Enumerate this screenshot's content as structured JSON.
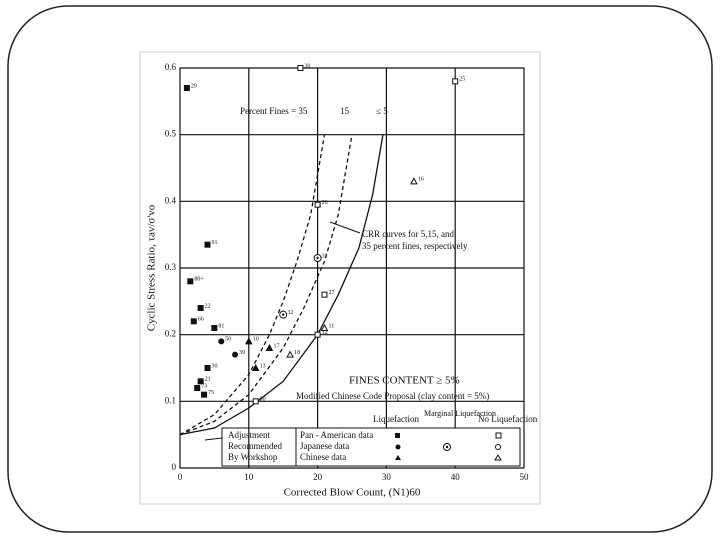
{
  "chart_data": {
    "type": "scatter",
    "x_label": "Corrected Blow Count, (N1)60",
    "y_label": "Cyclic Stress Ratio, τav/σ'vo",
    "xlim": [
      0,
      50
    ],
    "ylim": [
      0,
      0.6
    ],
    "xticks": [
      0,
      10,
      20,
      30,
      40,
      50
    ],
    "yticks": [
      0,
      0.1,
      0.2,
      0.3,
      0.4,
      0.5,
      0.6
    ],
    "grid": true,
    "color": "#111111",
    "annotations": [
      "Percent Fines = 35",
      "15",
      "≤ 5",
      "CRR curves for 5,15, and",
      "35 percent fines, respectively",
      "FINES CONTENT ≥ 5%",
      "Modified Chinese Code Proposal (clay content = 5%)",
      "Adjustment",
      "Recommended",
      "By Workshop"
    ],
    "legend_columns": [
      "Liquefaction",
      "Marginal Liquefaction",
      "No Liquefaction"
    ],
    "legend_rows": [
      "Pan - American data",
      "Japanese data",
      "Chinese data"
    ],
    "curves": [
      {
        "dash": true,
        "x": [
          0,
          5,
          10,
          13,
          15,
          17,
          19,
          21
        ],
        "values": [
          0.05,
          0.08,
          0.14,
          0.2,
          0.25,
          0.31,
          0.38,
          0.5
        ]
      },
      {
        "dash": true,
        "x": [
          0,
          5,
          10,
          15,
          18,
          21,
          23,
          25
        ],
        "values": [
          0.05,
          0.07,
          0.11,
          0.18,
          0.24,
          0.31,
          0.38,
          0.5
        ]
      },
      {
        "dash": false,
        "x": [
          0,
          5,
          10,
          15,
          20,
          23,
          26,
          28,
          29.5
        ],
        "values": [
          0.05,
          0.06,
          0.09,
          0.13,
          0.2,
          0.26,
          0.33,
          0.41,
          0.5
        ]
      }
    ],
    "series": [
      {
        "marker": "square",
        "filled": true,
        "x": [
          1,
          4,
          1.5,
          3,
          2,
          5,
          4,
          3,
          3.5,
          2.5
        ],
        "values": [
          0.57,
          0.335,
          0.28,
          0.24,
          0.22,
          0.21,
          0.15,
          0.13,
          0.11,
          0.12
        ],
        "labels": [
          "29",
          "91",
          "80+",
          "22",
          "66",
          "81",
          "30",
          "21",
          "75",
          "73"
        ]
      },
      {
        "marker": "square",
        "filled": false,
        "x": [
          17.5,
          40,
          20,
          21,
          11,
          20
        ],
        "values": [
          0.6,
          0.58,
          0.395,
          0.26,
          0.1,
          0.2
        ],
        "labels": [
          "30",
          "25",
          "26",
          "27",
          "90",
          "12"
        ]
      },
      {
        "marker": "circle",
        "filled": true,
        "x": [
          6,
          8
        ],
        "values": [
          0.19,
          0.17
        ],
        "labels": [
          "50",
          "39"
        ]
      },
      {
        "marker": "ring",
        "filled": false,
        "x": [
          15,
          20
        ],
        "values": [
          0.23,
          0.315
        ],
        "labels": [
          "32",
          "31"
        ]
      },
      {
        "marker": "triangle",
        "filled": true,
        "x": [
          10,
          13,
          11
        ],
        "values": [
          0.19,
          0.18,
          0.15
        ],
        "labels": [
          "10",
          "17",
          "13"
        ]
      },
      {
        "marker": "triangle",
        "filled": false,
        "x": [
          34,
          16,
          21
        ],
        "values": [
          0.43,
          0.17,
          0.21
        ],
        "labels": [
          "16",
          "18",
          "11"
        ]
      }
    ]
  }
}
